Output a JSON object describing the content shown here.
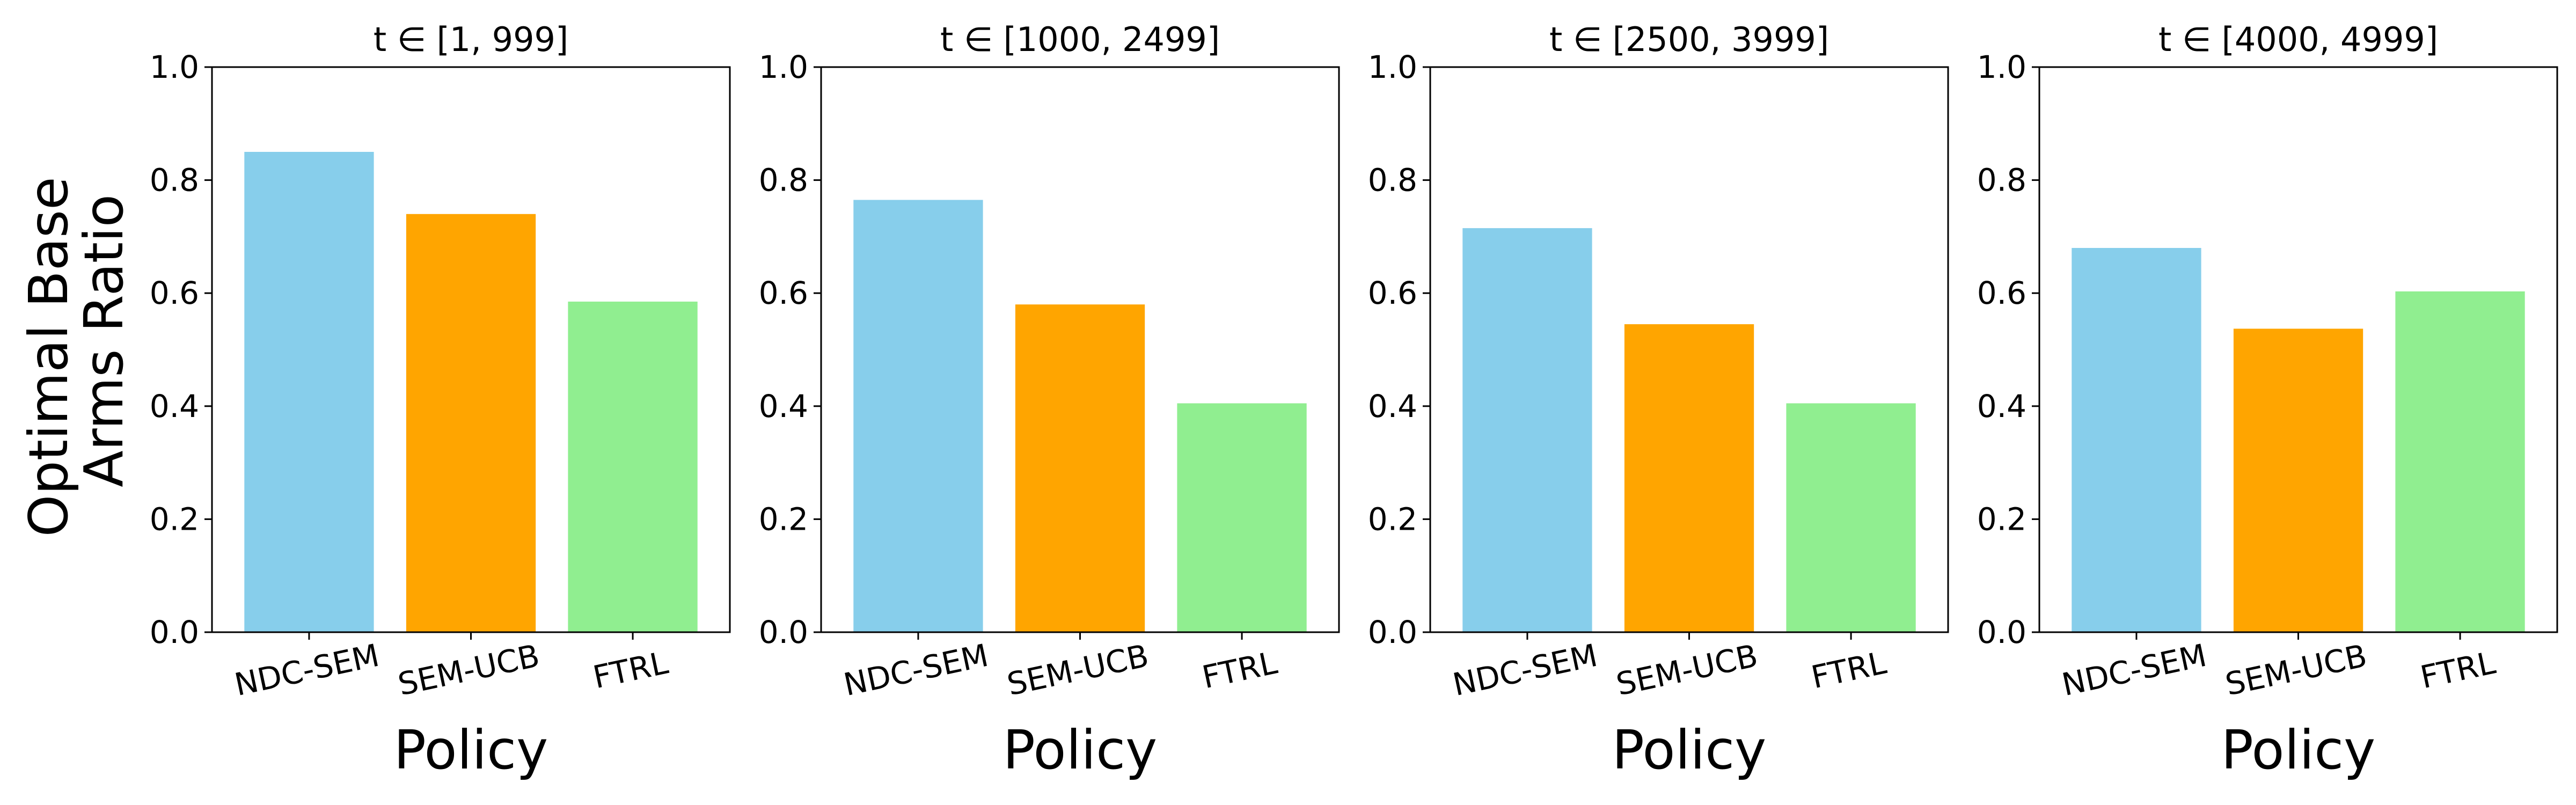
{
  "chart_data": {
    "type": "bar",
    "ylabel": [
      "Optimal Base",
      "Arms Ratio"
    ],
    "xlabel": "Policy",
    "ylim": [
      0,
      1.0
    ],
    "yticks": [
      "0.0",
      "0.2",
      "0.4",
      "0.6",
      "0.8",
      "1.0"
    ],
    "categories": [
      "NDC-SEM",
      "SEM-UCB",
      "FTRL"
    ],
    "colors": [
      "#87CEEB",
      "#FFA500",
      "#90EE90"
    ],
    "grid": false,
    "panels": [
      {
        "title": "t ∈ [1, 999]",
        "values": [
          0.85,
          0.74,
          0.585
        ]
      },
      {
        "title": "t ∈ [1000, 2499]",
        "values": [
          0.765,
          0.58,
          0.405
        ]
      },
      {
        "title": "t ∈ [2500, 3999]",
        "values": [
          0.715,
          0.545,
          0.405
        ]
      },
      {
        "title": "t ∈ [4000, 4999]",
        "values": [
          0.68,
          0.537,
          0.603
        ]
      }
    ]
  }
}
